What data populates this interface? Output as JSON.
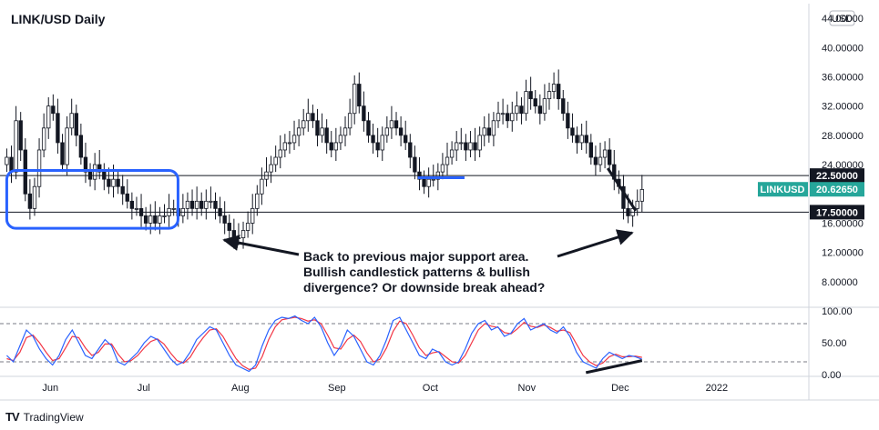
{
  "chart_data": {
    "type": "candlestick",
    "title": "LINK/USD Daily",
    "currency": "USD",
    "y_ticks": [
      "44.00000",
      "40.00000",
      "36.00000",
      "32.00000",
      "28.00000",
      "24.00000",
      "16.00000",
      "12.00000",
      "8.00000"
    ],
    "y_tick_values": [
      44,
      40,
      36,
      32,
      28,
      24,
      16,
      12,
      8
    ],
    "ylim": [
      5,
      46
    ],
    "x_ticks": [
      "Jun",
      "Jul",
      "Aug",
      "Sep",
      "Oct",
      "Nov",
      "Dec",
      "2022"
    ],
    "x_tick_days": [
      15,
      45,
      76,
      107,
      137,
      168,
      198,
      229
    ],
    "days_shown": [
      0,
      258
    ],
    "close_series": [
      25,
      23,
      30,
      26,
      20,
      18,
      21,
      26,
      29,
      32,
      31,
      27,
      24,
      29,
      31,
      28,
      25,
      23,
      22,
      24,
      23,
      22,
      21,
      22,
      21,
      20,
      19,
      18,
      18,
      17,
      16,
      17,
      16,
      17,
      17,
      18,
      18,
      17,
      18,
      19,
      18,
      19,
      18,
      19,
      19,
      18,
      17,
      16,
      15,
      14,
      14,
      15,
      16,
      18,
      20,
      22,
      23,
      24,
      25,
      26,
      27,
      27,
      28,
      29,
      30,
      31,
      30,
      28,
      29,
      27,
      26,
      27,
      28,
      29,
      31,
      35,
      32,
      30,
      28,
      27,
      26,
      28,
      29,
      30,
      29,
      28,
      27,
      25,
      23,
      22,
      21,
      22,
      22,
      23,
      24,
      25,
      26,
      27,
      27,
      26,
      27,
      26,
      28,
      29,
      28,
      30,
      31,
      31,
      30,
      31,
      32,
      31,
      34,
      33,
      32,
      31,
      33,
      34,
      35,
      33,
      31,
      29,
      28,
      27,
      28,
      27,
      25,
      24,
      25,
      26,
      24,
      22,
      21,
      18,
      17,
      18,
      19,
      20.6
    ],
    "price_levels": [
      {
        "label": "22.50000",
        "value": 22.5
      },
      {
        "label": "17.50000",
        "value": 17.5
      }
    ],
    "last_price": {
      "symbol": "LINKUSD",
      "label": "20.62650",
      "value": 20.6265
    },
    "annotation": [
      "Back to previous major support area.",
      "Bullish candlestick patterns & bullish",
      "divergence? Or downside break ahead?"
    ],
    "oscillator": {
      "y_ticks": [
        "100.00",
        "50.00",
        "0.00"
      ],
      "y_tick_values": [
        100,
        50,
        0
      ],
      "levels": [
        80,
        20
      ],
      "k_series": [
        30,
        20,
        45,
        70,
        60,
        40,
        25,
        15,
        30,
        55,
        70,
        50,
        30,
        25,
        40,
        55,
        45,
        20,
        15,
        25,
        35,
        50,
        60,
        55,
        40,
        25,
        15,
        20,
        35,
        55,
        65,
        75,
        70,
        50,
        30,
        15,
        10,
        5,
        15,
        45,
        70,
        85,
        90,
        88,
        92,
        85,
        80,
        90,
        75,
        50,
        30,
        45,
        70,
        60,
        40,
        20,
        15,
        30,
        55,
        85,
        90,
        70,
        50,
        30,
        25,
        40,
        35,
        20,
        15,
        20,
        40,
        65,
        80,
        85,
        70,
        75,
        60,
        65,
        80,
        88,
        70,
        75,
        80,
        70,
        65,
        75,
        60,
        35,
        20,
        15,
        10,
        25,
        35,
        30,
        25,
        30,
        28,
        24
      ],
      "d_series": [
        25,
        22,
        35,
        58,
        62,
        50,
        35,
        22,
        25,
        42,
        60,
        58,
        42,
        30,
        35,
        48,
        48,
        32,
        20,
        22,
        30,
        42,
        52,
        56,
        48,
        34,
        22,
        18,
        27,
        44,
        58,
        70,
        72,
        60,
        42,
        25,
        14,
        8,
        10,
        28,
        55,
        75,
        86,
        88,
        90,
        88,
        84,
        86,
        80,
        62,
        42,
        40,
        55,
        62,
        52,
        34,
        20,
        24,
        42,
        68,
        84,
        80,
        62,
        42,
        30,
        34,
        36,
        28,
        20,
        18,
        30,
        50,
        70,
        80,
        76,
        74,
        66,
        64,
        72,
        82,
        76,
        74,
        78,
        74,
        68,
        70,
        66,
        48,
        30,
        20,
        14,
        18,
        28,
        32,
        28,
        28,
        29,
        27
      ]
    },
    "colors": {
      "up": "#26a69a",
      "down": "#ef5350",
      "candle_up": "#ffffff",
      "candle_down": "#131722",
      "support_box": "#2962ff",
      "k_line": "#2962ff",
      "d_line": "#f23645",
      "last_price_tag": "#26a69a"
    }
  },
  "footer": {
    "brand": "TradingView"
  }
}
